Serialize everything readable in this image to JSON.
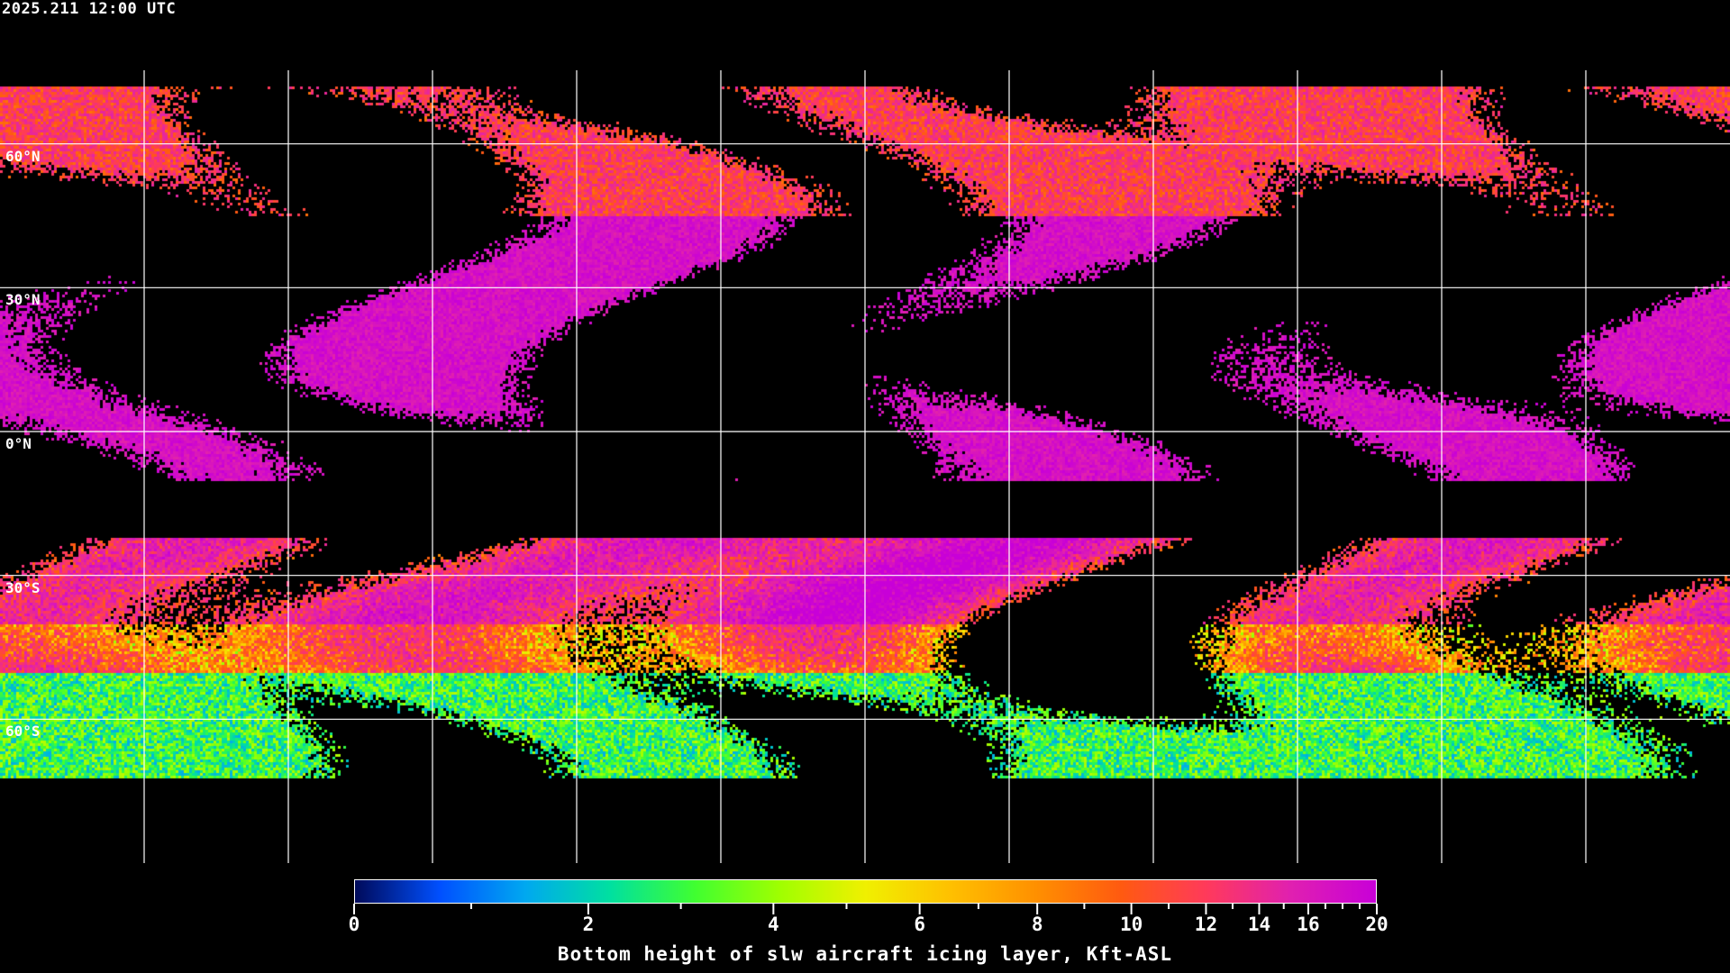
{
  "title": "2025.211 12:00 UTC",
  "map": {
    "projection": "equirectangular",
    "lon_grid_step_deg": 30,
    "lat_lines": [
      {
        "lat": 60,
        "label": "60°N"
      },
      {
        "lat": 30,
        "label": "30°N"
      },
      {
        "lat": 0,
        "label": "0°N"
      },
      {
        "lat": -30,
        "label": "30°S"
      },
      {
        "lat": -60,
        "label": "60°S"
      }
    ],
    "grid_color": "#ffffff",
    "coastline_color": "#ffffff",
    "background": "#000000"
  },
  "colorbar": {
    "title": "Bottom height of slw aircraft icing layer, Kft-ASL",
    "min": 0,
    "max": 20,
    "tick_labels": [
      "0",
      "2",
      "4",
      "6",
      "8",
      "10",
      "12",
      "14",
      "16",
      "20"
    ],
    "tick_values": [
      0,
      2,
      4,
      6,
      8,
      10,
      12,
      14,
      16,
      20
    ],
    "minor_tick_values": [
      1,
      3,
      5,
      7,
      9,
      11,
      13,
      15,
      17,
      18,
      19
    ],
    "colors": [
      "#000a5a",
      "#0050ff",
      "#00a8f0",
      "#00e0a0",
      "#40ff30",
      "#a0ff00",
      "#f0f000",
      "#ffc000",
      "#ff9000",
      "#ff5a10",
      "#ff3a5a",
      "#e020b0",
      "#c800d8"
    ]
  }
}
